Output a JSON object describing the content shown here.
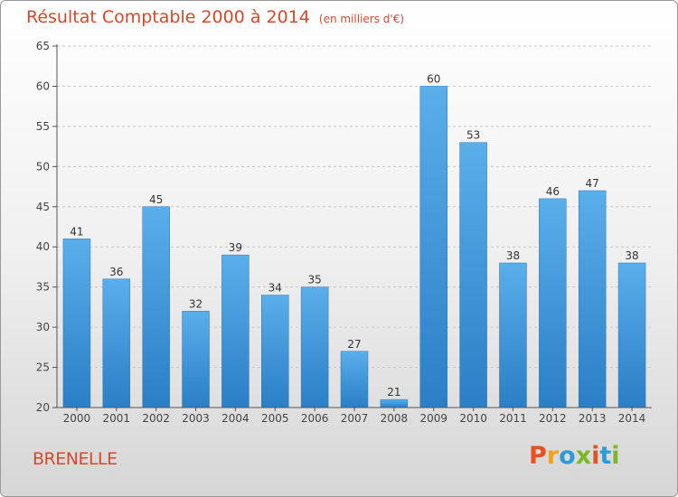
{
  "header": {
    "title": "Résultat Comptable 2000 à 2014",
    "subtitle": "(en milliers d'€)"
  },
  "footer": {
    "city": "BRENELLE",
    "logo": [
      "P",
      "r",
      "o",
      "x",
      "i",
      "t",
      "i"
    ],
    "logo_colors": [
      "#e8501e",
      "#f0a41c",
      "#2e9ad8",
      "#7ab828",
      "#e8501e",
      "#2e9ad8",
      "#7ab828"
    ]
  },
  "chart_data": {
    "type": "bar",
    "title": "Résultat Comptable 2000 à 2014",
    "subtitle": "(en milliers d'€)",
    "categories": [
      "2000",
      "2001",
      "2002",
      "2003",
      "2004",
      "2005",
      "2006",
      "2007",
      "2008",
      "2009",
      "2010",
      "2011",
      "2012",
      "2013",
      "2014"
    ],
    "values": [
      41,
      36,
      45,
      32,
      39,
      34,
      35,
      27,
      21,
      60,
      53,
      38,
      46,
      47,
      38
    ],
    "ylim": [
      20,
      65
    ],
    "yticks": [
      20,
      25,
      30,
      35,
      40,
      45,
      50,
      55,
      60,
      65
    ],
    "grid": true,
    "bar_color": "#4a9fdf",
    "xlabel": "",
    "ylabel": ""
  }
}
